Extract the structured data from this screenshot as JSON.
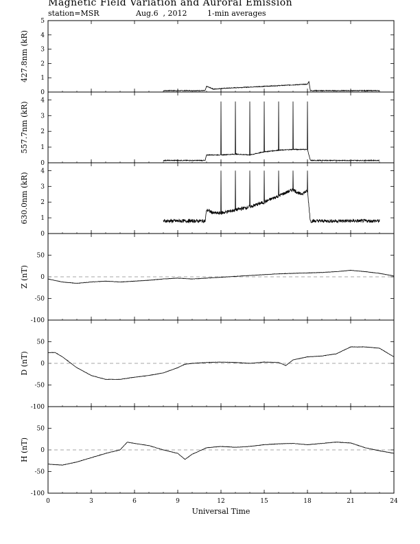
{
  "header": {
    "title": "Magnetic Field Variation and Auroral Emission",
    "station": "station=MSR",
    "date": "Aug.6  , 2012",
    "averaging": "1-min averages"
  },
  "chart_data": [
    {
      "type": "line",
      "panel": "427.8nm",
      "ylabel": "427.8nm (kR)",
      "ylim": [
        0,
        5
      ],
      "yticks": [
        0,
        1,
        2,
        3,
        4,
        5
      ],
      "xlim": [
        0,
        24
      ],
      "series": [
        {
          "values_x": [
            8,
            10.9,
            11,
            11.5,
            12,
            13,
            14,
            15,
            16,
            17,
            18,
            18.1,
            18.2,
            23
          ],
          "values_y": [
            0.1,
            0.1,
            0.4,
            0.2,
            0.25,
            0.3,
            0.35,
            0.4,
            0.45,
            0.5,
            0.55,
            0.75,
            0.1,
            0.1
          ]
        }
      ]
    },
    {
      "type": "line",
      "panel": "557.7nm",
      "ylabel": "557.7nm (kR)",
      "ylim": [
        0,
        4.5
      ],
      "yticks": [
        0,
        1,
        2,
        3,
        4
      ],
      "xlim": [
        0,
        24
      ],
      "series": [
        {
          "values_x": [
            8,
            10.9,
            11,
            12,
            13,
            14,
            15,
            16,
            17,
            18,
            18.2,
            23
          ],
          "values_y": [
            0.15,
            0.15,
            0.5,
            0.5,
            0.55,
            0.5,
            0.7,
            0.8,
            0.85,
            0.85,
            0.15,
            0.15
          ],
          "spikes_x": [
            12,
            13,
            14,
            15,
            16,
            17,
            18
          ],
          "spikes_y": 3.9
        }
      ]
    },
    {
      "type": "line",
      "panel": "630.0nm",
      "ylabel": "630.0nm (kR)",
      "ylim": [
        0,
        4.5
      ],
      "yticks": [
        0,
        1,
        2,
        3,
        4
      ],
      "xlim": [
        0,
        24
      ],
      "series": [
        {
          "values_x": [
            8,
            10.9,
            11,
            11.5,
            12,
            13,
            14,
            15,
            16,
            16.5,
            17,
            17.5,
            18,
            18.2,
            23
          ],
          "values_y": [
            0.8,
            0.8,
            1.5,
            1.3,
            1.3,
            1.5,
            1.7,
            2.0,
            2.4,
            2.6,
            2.8,
            2.5,
            2.7,
            0.8,
            0.8
          ],
          "spikes_x": [
            12,
            13,
            14,
            15,
            16,
            17,
            18
          ],
          "spikes_y": 4.0
        }
      ]
    },
    {
      "type": "line",
      "panel": "Z",
      "ylabel": "Z (nT)",
      "ylim": [
        -100,
        100
      ],
      "yticks": [
        -100,
        -50,
        0,
        50
      ],
      "xlim": [
        0,
        24
      ],
      "zero_line": true,
      "series": [
        {
          "values_x": [
            0,
            1,
            2,
            3,
            4,
            5,
            6,
            7,
            8,
            9,
            10,
            11,
            12,
            13,
            14,
            15,
            16,
            17,
            18,
            19,
            20,
            21,
            22,
            23,
            24
          ],
          "values_y": [
            -5,
            -12,
            -15,
            -12,
            -10,
            -12,
            -10,
            -8,
            -5,
            -3,
            -5,
            -3,
            -1,
            1,
            3,
            5,
            7,
            8,
            9,
            10,
            12,
            15,
            12,
            8,
            2
          ]
        }
      ]
    },
    {
      "type": "line",
      "panel": "D",
      "ylabel": "D (nT)",
      "ylim": [
        -100,
        100
      ],
      "yticks": [
        -100,
        -50,
        0,
        50
      ],
      "xlim": [
        0,
        24
      ],
      "zero_line": true,
      "series": [
        {
          "values_x": [
            0,
            0.5,
            1,
            2,
            3,
            4,
            5,
            6,
            7,
            8,
            9,
            9.5,
            10,
            11,
            12,
            13,
            14,
            15,
            16,
            16.5,
            17,
            18,
            19,
            20,
            21,
            22,
            23,
            24
          ],
          "values_y": [
            25,
            25,
            15,
            -10,
            -28,
            -37,
            -37,
            -32,
            -28,
            -22,
            -10,
            -2,
            0,
            2,
            3,
            2,
            0,
            3,
            2,
            -5,
            8,
            15,
            17,
            22,
            38,
            38,
            35,
            15
          ]
        }
      ]
    },
    {
      "type": "line",
      "panel": "H",
      "ylabel": "H (nT)",
      "ylim": [
        -100,
        100
      ],
      "yticks": [
        -100,
        -50,
        0,
        50
      ],
      "xlim": [
        0,
        24
      ],
      "zero_line": true,
      "xticks": [
        0,
        3,
        6,
        9,
        12,
        15,
        18,
        21,
        24
      ],
      "xlabel": "Universal Time",
      "series": [
        {
          "values_x": [
            0,
            1,
            2,
            3,
            4,
            5,
            5.5,
            6,
            7,
            8,
            9,
            9.5,
            10,
            11,
            12,
            13,
            14,
            15,
            16,
            17,
            18,
            19,
            20,
            21,
            22,
            23,
            24
          ],
          "values_y": [
            -33,
            -35,
            -28,
            -18,
            -8,
            0,
            18,
            15,
            10,
            0,
            -8,
            -22,
            -10,
            5,
            8,
            6,
            8,
            12,
            14,
            15,
            12,
            15,
            18,
            16,
            5,
            -2,
            -8
          ]
        }
      ]
    }
  ]
}
